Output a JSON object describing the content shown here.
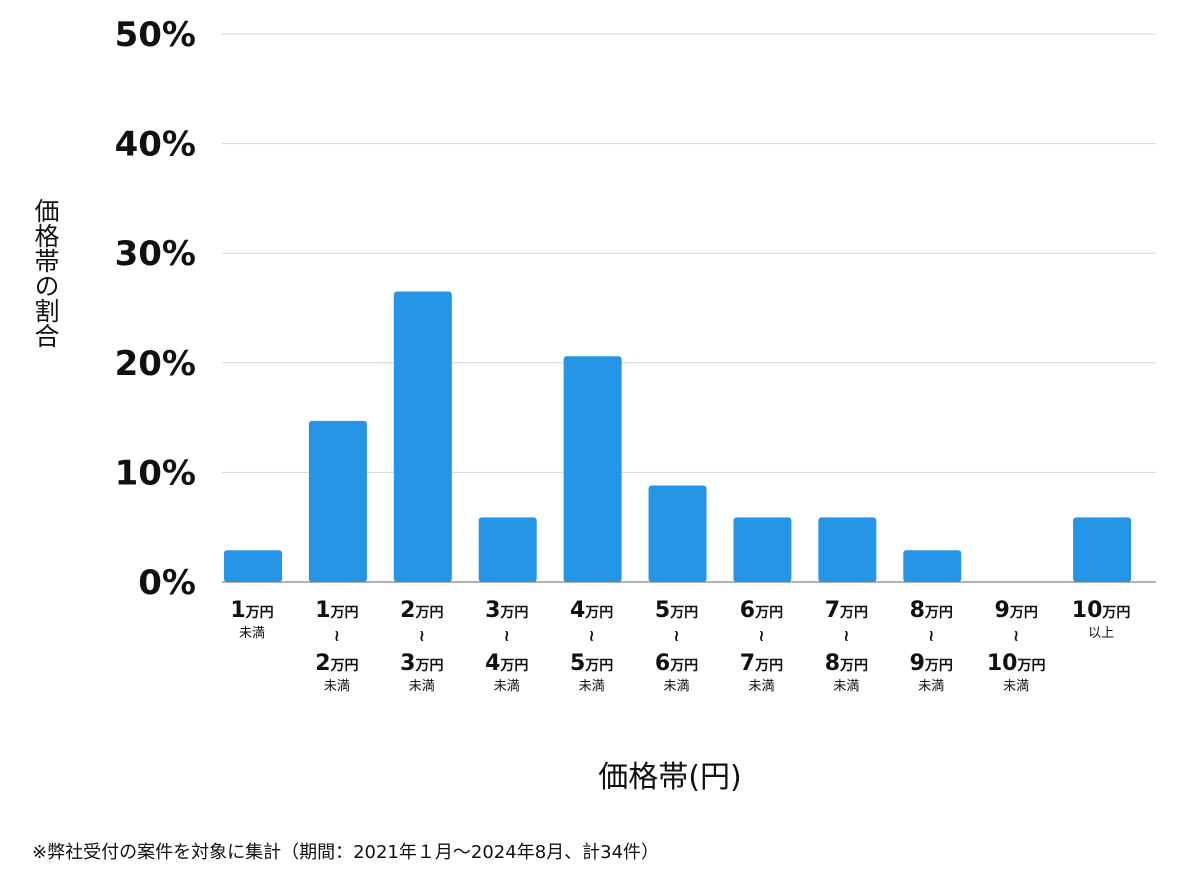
{
  "chart_data": {
    "type": "bar",
    "xlabel": "価格帯(円)",
    "ylabel": "価格帯の割合",
    "ylim": [
      0,
      50
    ],
    "yticks": [
      "0%",
      "10%",
      "20%",
      "30%",
      "40%",
      "50%"
    ],
    "grid": true,
    "bar_color": "#2795e6",
    "categories": [
      {
        "lines": [
          {
            "num": "1",
            "unit": "万円"
          }
        ],
        "note": "未満"
      },
      {
        "lines": [
          {
            "num": "1",
            "unit": "万円"
          },
          {
            "num": "2",
            "unit": "万円"
          }
        ],
        "sep": "≀",
        "note": "未満"
      },
      {
        "lines": [
          {
            "num": "2",
            "unit": "万円"
          },
          {
            "num": "3",
            "unit": "万円"
          }
        ],
        "sep": "≀",
        "note": "未満"
      },
      {
        "lines": [
          {
            "num": "3",
            "unit": "万円"
          },
          {
            "num": "4",
            "unit": "万円"
          }
        ],
        "sep": "≀",
        "note": "未満"
      },
      {
        "lines": [
          {
            "num": "4",
            "unit": "万円"
          },
          {
            "num": "5",
            "unit": "万円"
          }
        ],
        "sep": "≀",
        "note": "未満"
      },
      {
        "lines": [
          {
            "num": "5",
            "unit": "万円"
          },
          {
            "num": "6",
            "unit": "万円"
          }
        ],
        "sep": "≀",
        "note": "未満"
      },
      {
        "lines": [
          {
            "num": "6",
            "unit": "万円"
          },
          {
            "num": "7",
            "unit": "万円"
          }
        ],
        "sep": "≀",
        "note": "未満"
      },
      {
        "lines": [
          {
            "num": "7",
            "unit": "万円"
          },
          {
            "num": "8",
            "unit": "万円"
          }
        ],
        "sep": "≀",
        "note": "未満"
      },
      {
        "lines": [
          {
            "num": "8",
            "unit": "万円"
          },
          {
            "num": "9",
            "unit": "万円"
          }
        ],
        "sep": "≀",
        "note": "未満"
      },
      {
        "lines": [
          {
            "num": "9",
            "unit": "万円"
          },
          {
            "num": "10",
            "unit": "万円"
          }
        ],
        "sep": "≀",
        "note": "未満"
      },
      {
        "lines": [
          {
            "num": "10",
            "unit": "万円"
          }
        ],
        "note": "以上"
      }
    ],
    "values": [
      2.9,
      14.7,
      26.5,
      5.9,
      20.6,
      8.8,
      5.9,
      5.9,
      2.9,
      0,
      5.9
    ]
  },
  "footnote": "※弊社受付の案件を対象に集計（期間：2021年１月〜2024年8月、計34件）"
}
